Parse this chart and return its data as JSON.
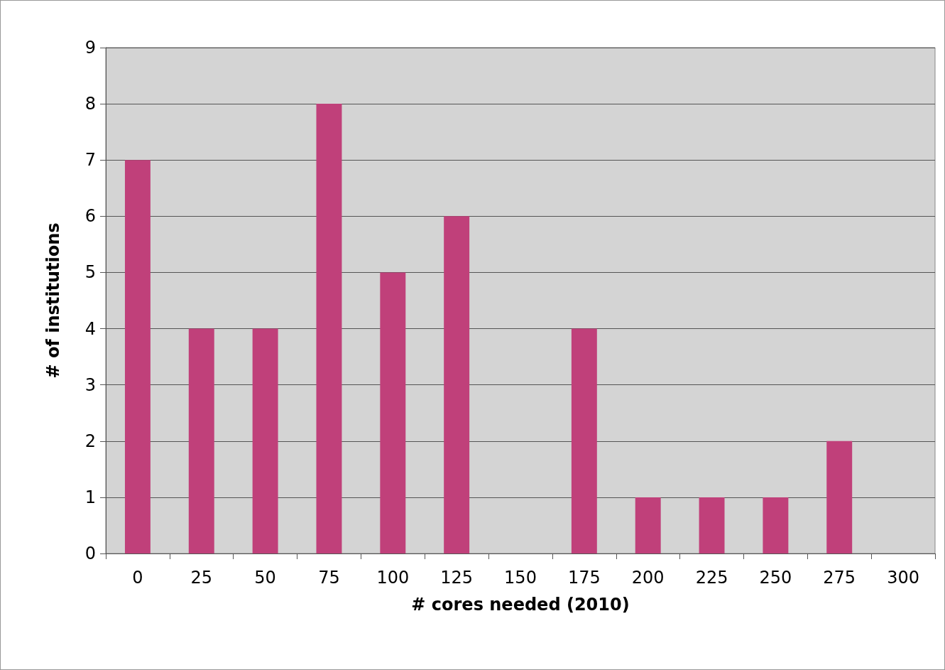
{
  "chart_data": {
    "type": "bar",
    "xlabel": "# cores needed (2010)",
    "ylabel": "# of institutions",
    "categories": [
      "0",
      "25",
      "50",
      "75",
      "100",
      "125",
      "150",
      "175",
      "200",
      "225",
      "250",
      "275",
      "300"
    ],
    "values": [
      7,
      4,
      4,
      8,
      5,
      6,
      0,
      4,
      1,
      1,
      1,
      2,
      0
    ],
    "color": "#c0407a",
    "ylim": [
      0,
      9
    ],
    "yticks": [
      0,
      1,
      2,
      3,
      4,
      5,
      6,
      7,
      8,
      9
    ],
    "grid": "y"
  }
}
